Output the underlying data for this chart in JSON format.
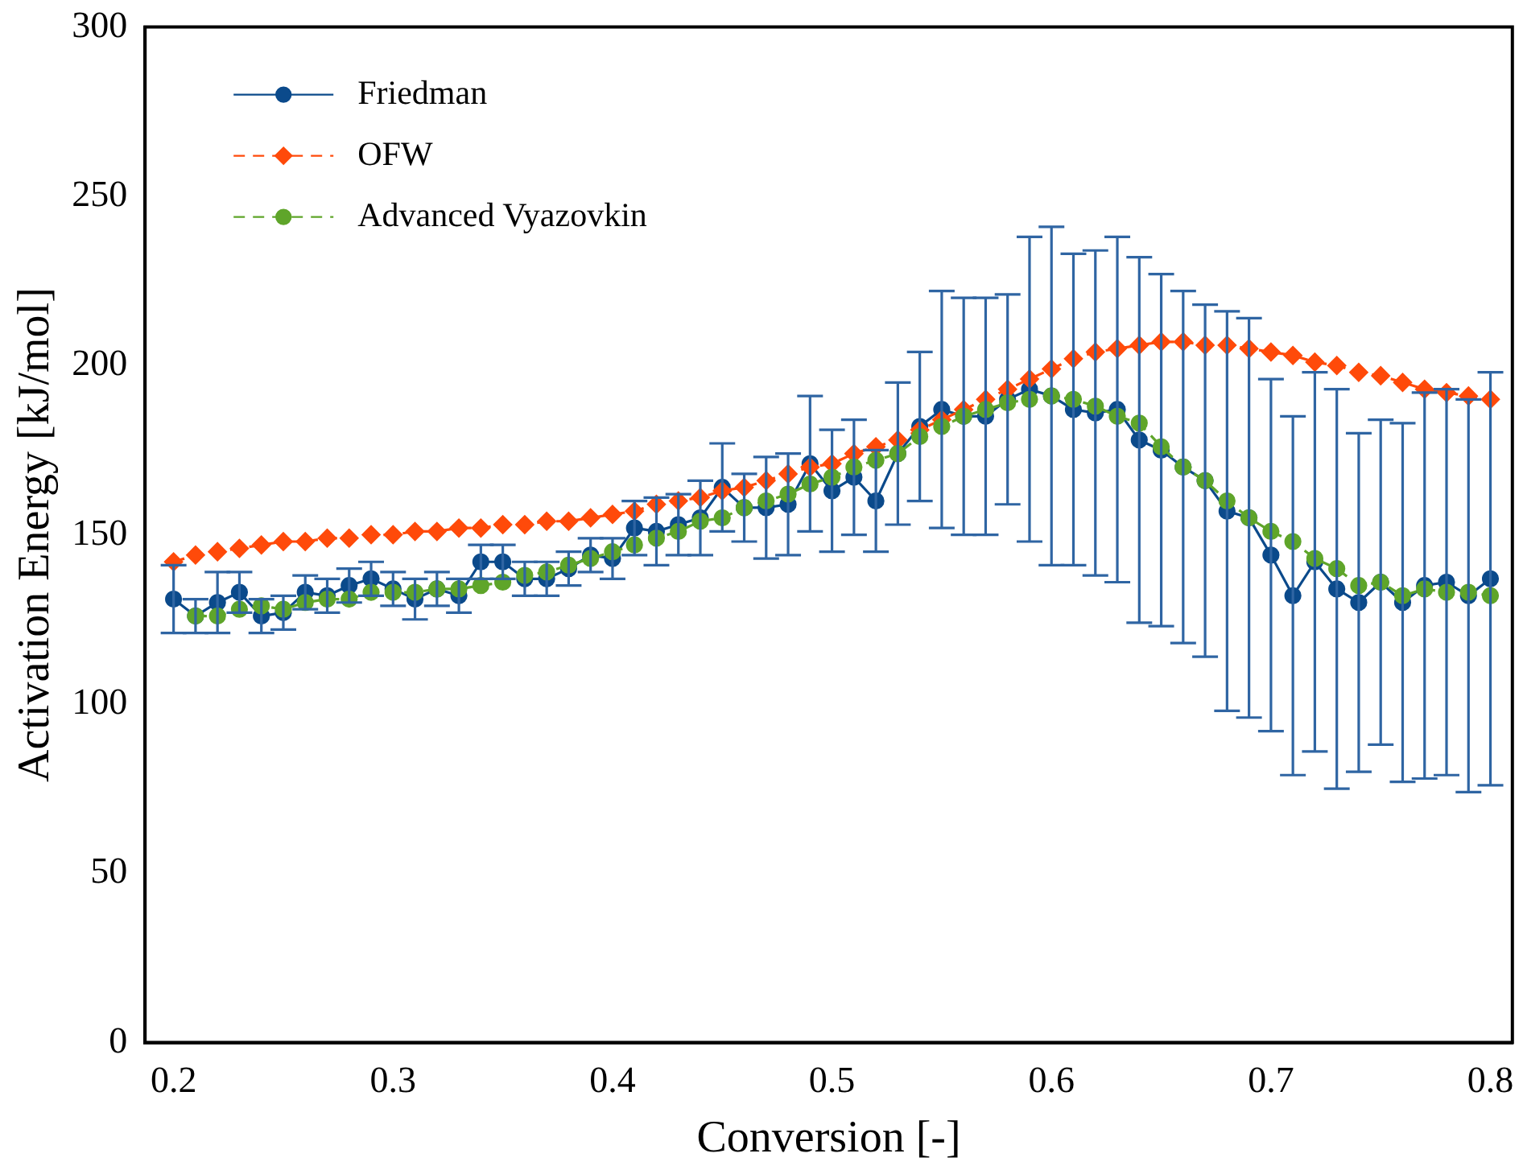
{
  "chart_data": {
    "type": "line",
    "xlabel": "Conversion [-]",
    "ylabel": "Activation Energy [kJ/mol]",
    "x": [
      0.2,
      0.21,
      0.22,
      0.23,
      0.24,
      0.25,
      0.26,
      0.27,
      0.28,
      0.29,
      0.3,
      0.31,
      0.32,
      0.33,
      0.34,
      0.35,
      0.36,
      0.37,
      0.38,
      0.39,
      0.4,
      0.41,
      0.42,
      0.43,
      0.44,
      0.45,
      0.46,
      0.47,
      0.48,
      0.49,
      0.5,
      0.51,
      0.52,
      0.53,
      0.54,
      0.55,
      0.56,
      0.57,
      0.58,
      0.59,
      0.6,
      0.61,
      0.62,
      0.63,
      0.64,
      0.65,
      0.66,
      0.67,
      0.68,
      0.69,
      0.7,
      0.71,
      0.72,
      0.73,
      0.74,
      0.75,
      0.76,
      0.77,
      0.78,
      0.79,
      0.8
    ],
    "xlim": [
      0.187,
      0.81
    ],
    "xticks": [
      0.2,
      0.3,
      0.4,
      0.5,
      0.6,
      0.7,
      0.8
    ],
    "ylim": [
      0,
      300
    ],
    "yticks": [
      0,
      50,
      100,
      150,
      200,
      250,
      300
    ],
    "grid": false,
    "legend": "top left",
    "series": [
      {
        "name": "Friedman",
        "color": "#0b4a8b",
        "marker": "circle",
        "line_style": "solid",
        "values": [
          131,
          126,
          130,
          133,
          126,
          127,
          133,
          132,
          135,
          137,
          134,
          131,
          134,
          132,
          142,
          142,
          137,
          137,
          140,
          144,
          143,
          152,
          151,
          153,
          155,
          164,
          158,
          158,
          159,
          171,
          163,
          167,
          160,
          174,
          182,
          187,
          185,
          185,
          190,
          193,
          191,
          187,
          186,
          187,
          178,
          175,
          170,
          166,
          157,
          155,
          144,
          132,
          142,
          134,
          130,
          136,
          130,
          135,
          136,
          132,
          137
        ],
        "errors": [
          10,
          5,
          9,
          6,
          5,
          5,
          5,
          5,
          5,
          5,
          5,
          6,
          5,
          5,
          5,
          5,
          5,
          5,
          5,
          5,
          6,
          8,
          10,
          9,
          11,
          13,
          10,
          15,
          15,
          20,
          18,
          17,
          15,
          21,
          22,
          35,
          35,
          35,
          31,
          45,
          50,
          46,
          48,
          51,
          54,
          52,
          52,
          52,
          59,
          59,
          52,
          53,
          56,
          59,
          50,
          48,
          53,
          57,
          57,
          58,
          61
        ]
      },
      {
        "name": "OFW",
        "color": "#ff4a0a",
        "marker": "diamond",
        "line_style": "dashed",
        "values": [
          142,
          144,
          145,
          146,
          147,
          148,
          148,
          149,
          149,
          150,
          150,
          151,
          151,
          152,
          152,
          153,
          153,
          154,
          154,
          155,
          156,
          157,
          159,
          160,
          161,
          163,
          164,
          166,
          168,
          170,
          171,
          174,
          176,
          178,
          181,
          184,
          187,
          190,
          193,
          196,
          199,
          202,
          204,
          205,
          206,
          207,
          207,
          206,
          206,
          205,
          204,
          203,
          201,
          200,
          198,
          197,
          195,
          193,
          192,
          191,
          190
        ]
      },
      {
        "name": "Advanced Vyazovkin",
        "color": "#5fa52a",
        "marker": "circle",
        "line_style": "dashed",
        "values": [
          null,
          126,
          126,
          128,
          129,
          128,
          130,
          131,
          131,
          133,
          133,
          133,
          134,
          134,
          135,
          136,
          138,
          139,
          141,
          143,
          145,
          147,
          149,
          151,
          154,
          155,
          158,
          160,
          162,
          165,
          167,
          170,
          172,
          174,
          179,
          182,
          185,
          187,
          189,
          190,
          191,
          190,
          188,
          185,
          183,
          176,
          170,
          166,
          160,
          155,
          151,
          148,
          143,
          140,
          135,
          136,
          132,
          134,
          133,
          133,
          132
        ]
      }
    ]
  }
}
